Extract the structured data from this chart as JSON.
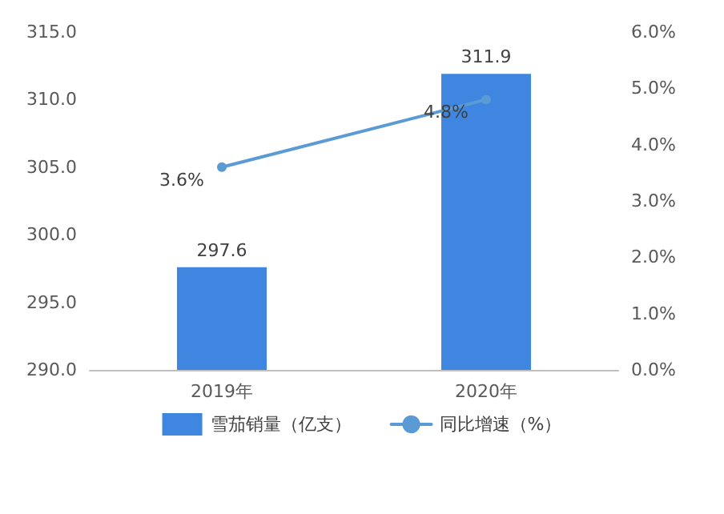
{
  "chart_data": {
    "type": "bar",
    "categories": [
      "2019年",
      "2020年"
    ],
    "series": [
      {
        "name": "雪茄销量（亿支）",
        "color": "#3f86e0",
        "values": [
          297.6,
          311.9
        ],
        "value_labels": [
          "297.6",
          "311.9"
        ]
      },
      {
        "name": "同比增速（%）",
        "type": "line",
        "axis": "y2",
        "color": "#5b9bd5",
        "values": [
          3.6,
          4.8
        ],
        "value_labels": [
          "3.6%",
          "4.8%"
        ]
      }
    ],
    "ylim": [
      290,
      315
    ],
    "yticks": [
      {
        "value": 290,
        "label": "290.0"
      },
      {
        "value": 295,
        "label": "295.0"
      },
      {
        "value": 300,
        "label": "300.0"
      },
      {
        "value": 305,
        "label": "305.0"
      },
      {
        "value": 310,
        "label": "310.0"
      },
      {
        "value": 315,
        "label": "315.0"
      }
    ],
    "y2lim": [
      0,
      6
    ],
    "y2ticks": [
      {
        "value": 0,
        "label": "0.0%"
      },
      {
        "value": 1,
        "label": "1.0%"
      },
      {
        "value": 2,
        "label": "2.0%"
      },
      {
        "value": 3,
        "label": "3.0%"
      },
      {
        "value": 4,
        "label": "4.0%"
      },
      {
        "value": 5,
        "label": "5.0%"
      },
      {
        "value": 6,
        "label": "6.0%"
      }
    ],
    "legend": "bottom",
    "marker": "circle",
    "line_style": "solid",
    "grid": false
  }
}
